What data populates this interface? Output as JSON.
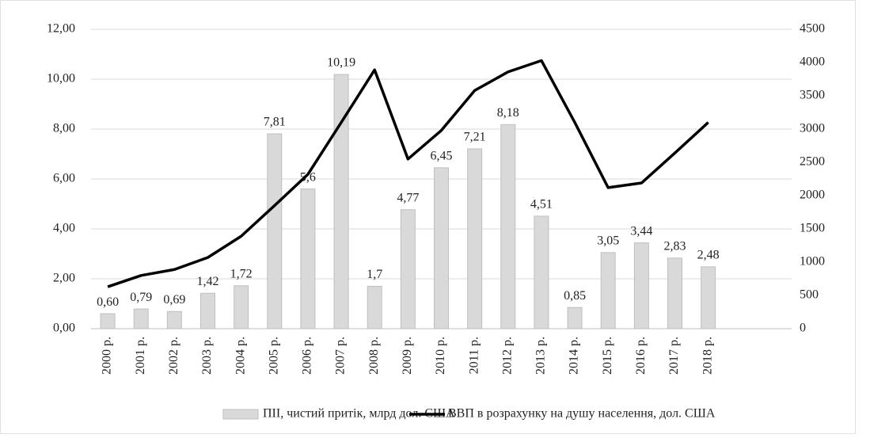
{
  "chart_data": {
    "type": "bar",
    "categories": [
      "2000 р.",
      "2001 р.",
      "2002 р.",
      "2003 р.",
      "2004 р.",
      "2005 р.",
      "2006 р.",
      "2007 р.",
      "2008 р.",
      "2009 р.",
      "2010 р.",
      "2011 р.",
      "2012 р.",
      "2013 р.",
      "2014 р.",
      "2015 р.",
      "2016 р.",
      "2017 р.",
      "2018 р.",
      null,
      null
    ],
    "series": [
      {
        "name": "ПІІ, чистий притік, млрд  дол. США",
        "color": "#d9d9d9",
        "type": "bar",
        "values": [
          0.6,
          0.79,
          0.69,
          1.42,
          1.72,
          7.81,
          5.6,
          10.19,
          1.7,
          4.77,
          6.45,
          7.21,
          8.18,
          4.51,
          0.85,
          3.05,
          3.44,
          2.83,
          2.48,
          null,
          null
        ],
        "value_labels": [
          "0,60",
          "0,79",
          "0,69",
          "1,42",
          "1,72",
          "7,81",
          "5,6",
          "10,19",
          "1,7",
          "4,77",
          "6,45",
          "7,21",
          "8,18",
          "4,51",
          "0,85",
          "3,05",
          "3,44",
          "2,83",
          "2,48",
          null,
          null
        ]
      },
      {
        "name": "ВВП в розрахунку на душу населення, дол. США",
        "color": "#000000",
        "type": "line",
        "axis": "y2",
        "values": [
          630,
          800,
          890,
          1070,
          1390,
          1850,
          2320,
          3100,
          3890,
          2550,
          2980,
          3580,
          3860,
          4030,
          3100,
          2120,
          2190,
          2640,
          3100,
          null,
          null
        ]
      }
    ],
    "ylim": [
      0,
      12
    ],
    "yticks": [
      {
        "value": 0,
        "label": "0,00"
      },
      {
        "value": 2,
        "label": "2,00"
      },
      {
        "value": 4,
        "label": "4,00"
      },
      {
        "value": 6,
        "label": "6,00"
      },
      {
        "value": 8,
        "label": "8,00"
      },
      {
        "value": 10,
        "label": "10,00"
      },
      {
        "value": 12,
        "label": "12,00"
      }
    ],
    "y2lim": [
      0,
      4500
    ],
    "y2ticks": [
      0,
      500,
      1000,
      1500,
      2000,
      2500,
      3000,
      3500,
      4000,
      4500
    ],
    "grid": true,
    "legend": "bottom"
  }
}
